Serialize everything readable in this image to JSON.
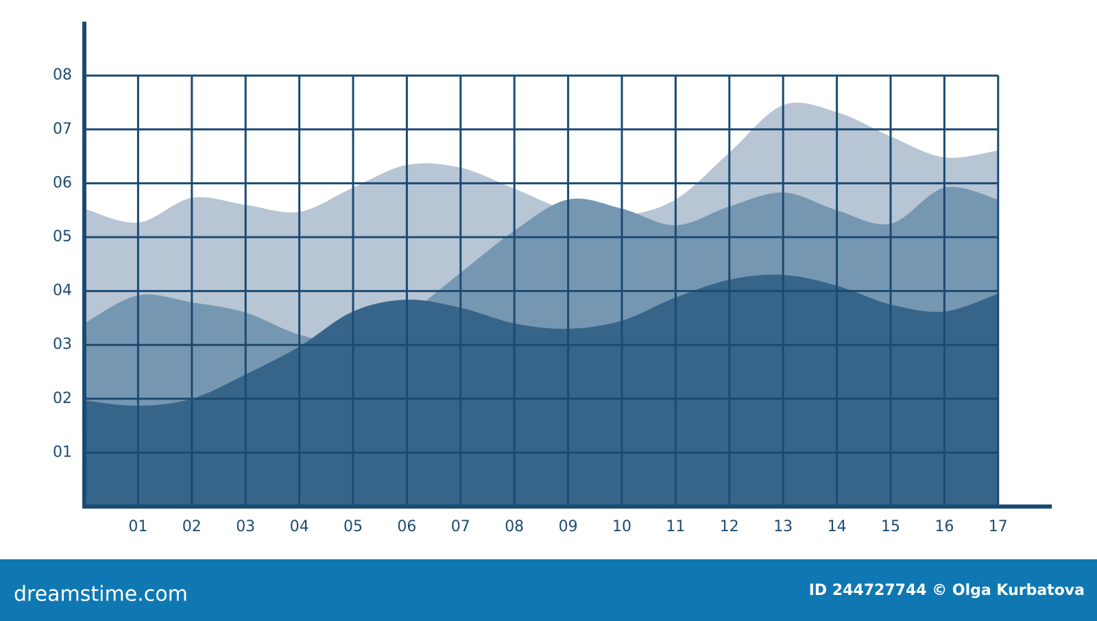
{
  "chart_data": {
    "type": "area",
    "x": [
      0,
      1,
      2,
      3,
      4,
      5,
      6,
      7,
      8,
      9,
      10,
      11,
      12,
      13,
      14,
      15,
      16,
      17
    ],
    "series": [
      {
        "color": "#b7c5d4",
        "values": [
          5.53,
          5.27,
          5.73,
          5.6,
          5.47,
          5.92,
          6.34,
          6.29,
          5.9,
          5.5,
          5.4,
          5.7,
          6.57,
          7.45,
          7.32,
          6.87,
          6.48,
          6.61
        ]
      },
      {
        "color": "#7697b1",
        "values": [
          3.4,
          3.92,
          3.79,
          3.6,
          3.19,
          3.04,
          3.56,
          4.34,
          5.12,
          5.7,
          5.53,
          5.22,
          5.57,
          5.83,
          5.5,
          5.25,
          5.92,
          5.7
        ]
      },
      {
        "color": "#366589",
        "values": [
          1.97,
          1.87,
          2.0,
          2.45,
          2.97,
          3.62,
          3.84,
          3.69,
          3.4,
          3.3,
          3.45,
          3.88,
          4.21,
          4.3,
          4.1,
          3.75,
          3.62,
          3.95
        ]
      }
    ],
    "xlim": [
      0,
      18
    ],
    "ylim": [
      0,
      9
    ],
    "xticks": [
      {
        "value": 1,
        "label": "01"
      },
      {
        "value": 2,
        "label": "02"
      },
      {
        "value": 3,
        "label": "03"
      },
      {
        "value": 4,
        "label": "04"
      },
      {
        "value": 5,
        "label": "05"
      },
      {
        "value": 6,
        "label": "06"
      },
      {
        "value": 7,
        "label": "07"
      },
      {
        "value": 8,
        "label": "08"
      },
      {
        "value": 9,
        "label": "09"
      },
      {
        "value": 10,
        "label": "10"
      },
      {
        "value": 11,
        "label": "11"
      },
      {
        "value": 12,
        "label": "12"
      },
      {
        "value": 13,
        "label": "13"
      },
      {
        "value": 14,
        "label": "14"
      },
      {
        "value": 15,
        "label": "15"
      },
      {
        "value": 16,
        "label": "16"
      },
      {
        "value": 17,
        "label": "17"
      }
    ],
    "yticks": [
      {
        "value": 1,
        "label": "01"
      },
      {
        "value": 2,
        "label": "02"
      },
      {
        "value": 3,
        "label": "03"
      },
      {
        "value": 4,
        "label": "04"
      },
      {
        "value": 5,
        "label": "05"
      },
      {
        "value": 6,
        "label": "06"
      },
      {
        "value": 7,
        "label": "07"
      },
      {
        "value": 8,
        "label": "08"
      }
    ],
    "grid": true,
    "grid_color": "#1b4a72"
  },
  "footer": {
    "brand": "dreamstime.com",
    "credit": "ID 244727744 © Olga Kurbatova",
    "color": "#0f78b2"
  }
}
